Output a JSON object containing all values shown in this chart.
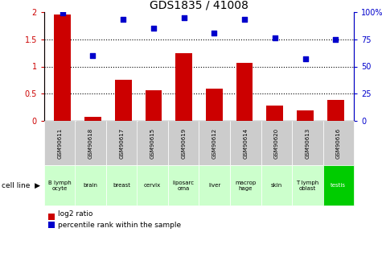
{
  "title": "GDS1835 / 41008",
  "samples": [
    "GSM90611",
    "GSM90618",
    "GSM90617",
    "GSM90615",
    "GSM90619",
    "GSM90612",
    "GSM90614",
    "GSM90620",
    "GSM90613",
    "GSM90616"
  ],
  "cell_lines": [
    "B lymph\nocyte",
    "brain",
    "breast",
    "cervix",
    "liposarc\noma",
    "liver",
    "macrop\nhage",
    "skin",
    "T lymph\noblast",
    "testis"
  ],
  "log2_ratio": [
    1.95,
    0.08,
    0.76,
    0.57,
    1.25,
    0.6,
    1.06,
    0.28,
    0.19,
    0.39
  ],
  "percentile_rank": [
    99,
    60,
    93,
    85,
    95,
    81,
    93,
    76,
    57,
    75
  ],
  "bar_color": "#cc0000",
  "scatter_color": "#0000cc",
  "ylim_left": [
    0,
    2
  ],
  "ylim_right": [
    0,
    100
  ],
  "yticks_left": [
    0,
    0.5,
    1.0,
    1.5,
    2.0
  ],
  "yticks_right": [
    0,
    25,
    50,
    75,
    100
  ],
  "ytick_labels_left": [
    "0",
    "0.5",
    "1",
    "1.5",
    "2"
  ],
  "ytick_labels_right": [
    "0",
    "25",
    "50",
    "75",
    "100%"
  ],
  "cell_line_bg_light": "#ccffcc",
  "cell_line_bg_dark": "#00cc00",
  "sample_bg": "#cccccc",
  "special_dark_indices": [
    9
  ],
  "legend_bar": "log2 ratio",
  "legend_scatter": "percentile rank within the sample"
}
